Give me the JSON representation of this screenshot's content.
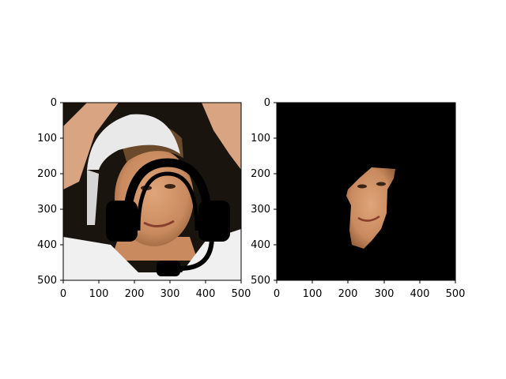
{
  "figure": {
    "panels": [
      {
        "name": "original-image-with-headset-overlay",
        "xlim": [
          0,
          500
        ],
        "ylim": [
          0,
          500
        ],
        "xticks": [
          "0",
          "100",
          "200",
          "300",
          "400",
          "500"
        ],
        "yticks": [
          "0",
          "100",
          "200",
          "300",
          "400",
          "500"
        ]
      },
      {
        "name": "masked-face-image",
        "xlim": [
          0,
          500
        ],
        "ylim": [
          0,
          500
        ],
        "xticks": [
          "0",
          "100",
          "200",
          "300",
          "400",
          "500"
        ],
        "yticks": [
          "0",
          "100",
          "200",
          "300",
          "400",
          "500"
        ]
      }
    ]
  },
  "icons": {
    "overlay": "headset-icon"
  },
  "colors": {
    "background_dark": "#1a140f",
    "skin": "#c88a5e",
    "shirt": "#f1f0f0",
    "cap": "#e9e9e9",
    "hair": "#6a4a2b",
    "icon": "#000000"
  }
}
